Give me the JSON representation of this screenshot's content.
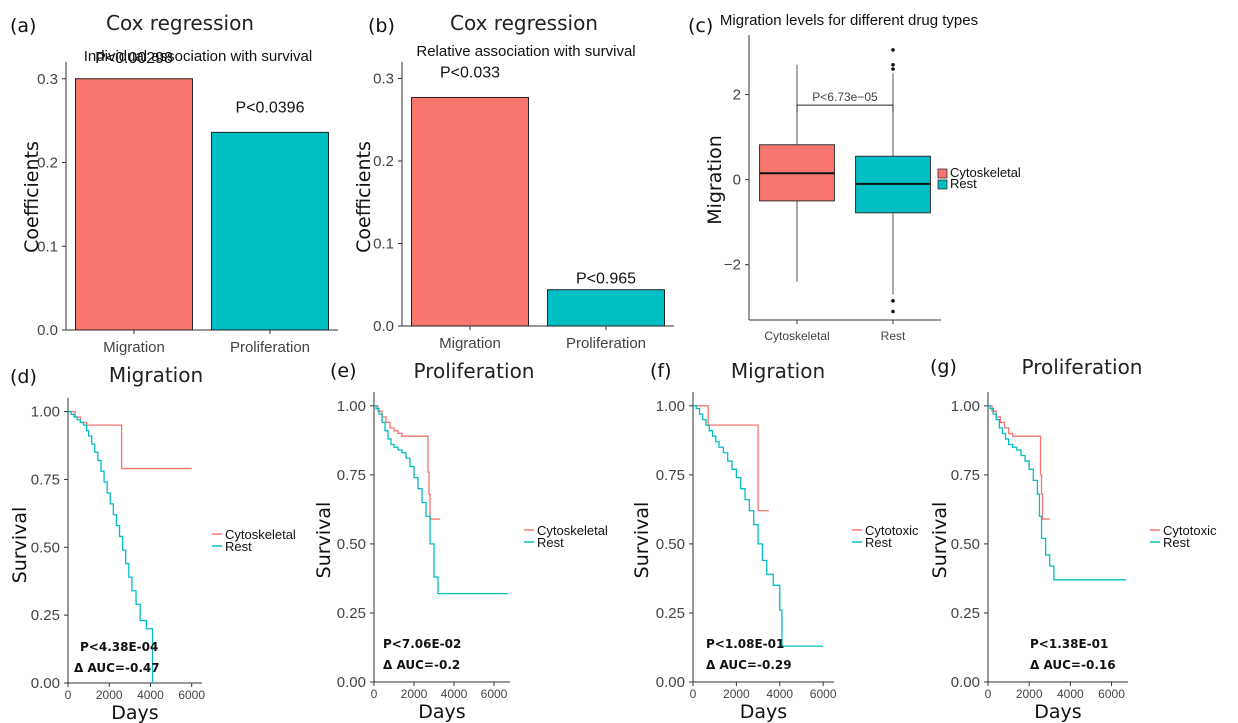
{
  "chart_data": [
    {
      "panel": "(a)",
      "type": "bar",
      "title": "Cox regression",
      "subtitle": "Individual association with survival",
      "ylabel": "Coefficients",
      "xlabel": "",
      "ylim": [
        0,
        0.32
      ],
      "yticks": [
        0.0,
        0.1,
        0.2,
        0.3
      ],
      "ytick_labels": [
        "0.0",
        "0.1",
        "0.2",
        "0.3"
      ],
      "categories": [
        "Migration",
        "Proliferation"
      ],
      "values": [
        0.3,
        0.236
      ],
      "value_labels": [
        "P<0.00298",
        "P<0.0396"
      ],
      "colors": [
        "#F8766D",
        "#00BFC4"
      ],
      "grid": false
    },
    {
      "panel": "(b)",
      "type": "bar",
      "title": "Cox regression",
      "subtitle": "Relative association with survival",
      "ylabel": "Coefficients",
      "xlabel": "",
      "ylim": [
        0,
        0.32
      ],
      "yticks": [
        0.0,
        0.1,
        0.2,
        0.3
      ],
      "ytick_labels": [
        "0.0",
        "0.1",
        "0.2",
        "0.3"
      ],
      "categories": [
        "Migration",
        "Proliferation"
      ],
      "values": [
        0.277,
        0.044
      ],
      "value_labels": [
        "P<0.033",
        "P<0.965"
      ],
      "colors": [
        "#F8766D",
        "#00BFC4"
      ],
      "grid": false
    },
    {
      "panel": "(c)",
      "type": "box",
      "title": "Migration levels for different drug types",
      "ylabel": "Migration",
      "xlabel": "",
      "ylim": [
        -3.3,
        3.4
      ],
      "yticks": [
        -2,
        0,
        2
      ],
      "ytick_labels": [
        "−2",
        "0",
        "2"
      ],
      "categories": [
        "Cytoskeletal",
        "Rest"
      ],
      "boxes": [
        {
          "name": "Cytoskeletal",
          "q1": -0.5,
          "median": 0.15,
          "q3": 0.82,
          "whisker_low": -2.4,
          "whisker_high": 2.7,
          "outliers": [],
          "color": "#F8766D"
        },
        {
          "name": "Rest",
          "q1": -0.78,
          "median": -0.1,
          "q3": 0.55,
          "whisker_low": -2.7,
          "whisker_high": 2.5,
          "outliers": [
            3.05,
            2.7,
            2.6,
            -2.85,
            -3.1
          ],
          "color": "#00BFC4"
        }
      ],
      "annotation": "P<6.73e−05",
      "legend": [
        "Cytoskeletal",
        "Rest"
      ],
      "legend_position": "right"
    },
    {
      "panel": "(d)",
      "type": "line",
      "title": "Migration",
      "xlabel": "Days",
      "ylabel": "Survival",
      "xlim": [
        0,
        6500
      ],
      "ylim": [
        0,
        1.05
      ],
      "xticks": [
        0,
        2000,
        4000,
        6000
      ],
      "xtick_labels": [
        "0",
        "2000",
        "4000",
        "6000"
      ],
      "yticks": [
        0,
        0.25,
        0.5,
        0.75,
        1.0
      ],
      "ytick_labels": [
        "0.00",
        "0.25",
        "0.50",
        "0.75",
        "1.00"
      ],
      "legend": [
        "Cytoskeletal",
        "Rest"
      ],
      "legend_position": "right",
      "p_label": "P<4.38E-04",
      "auc_label": "Δ AUC=-0.47",
      "series": [
        {
          "name": "Cytoskeletal",
          "color": "#F8766D",
          "x": [
            0,
            150,
            350,
            600,
            900,
            2600,
            2600,
            6000
          ],
          "y": [
            1.0,
            1.0,
            0.98,
            0.96,
            0.95,
            0.95,
            0.79,
            0.79
          ]
        },
        {
          "name": "Rest",
          "color": "#00BFC4",
          "x": [
            0,
            150,
            300,
            450,
            600,
            750,
            900,
            1000,
            1150,
            1300,
            1450,
            1600,
            1750,
            1900,
            2050,
            2200,
            2350,
            2500,
            2650,
            2800,
            2950,
            3100,
            3300,
            3500,
            3800,
            4100,
            4100
          ],
          "y": [
            1.0,
            0.99,
            0.98,
            0.97,
            0.96,
            0.95,
            0.93,
            0.91,
            0.88,
            0.85,
            0.82,
            0.78,
            0.74,
            0.7,
            0.66,
            0.62,
            0.58,
            0.54,
            0.49,
            0.44,
            0.39,
            0.34,
            0.29,
            0.23,
            0.2,
            0.15,
            0.0
          ]
        }
      ]
    },
    {
      "panel": "(e)",
      "type": "line",
      "title": "Proliferation",
      "xlabel": "Days",
      "ylabel": "Survival",
      "xlim": [
        0,
        6800
      ],
      "ylim": [
        0,
        1.05
      ],
      "xticks": [
        0,
        2000,
        4000,
        6000
      ],
      "xtick_labels": [
        "0",
        "2000",
        "4000",
        "6000"
      ],
      "yticks": [
        0,
        0.25,
        0.5,
        0.75,
        1.0
      ],
      "ytick_labels": [
        "0.00",
        "0.25",
        "0.50",
        "0.75",
        "1.00"
      ],
      "legend": [
        "Cytoskeletal",
        "Rest"
      ],
      "legend_position": "right",
      "p_label": "P<7.06E-02",
      "auc_label": "Δ AUC=-0.2",
      "series": [
        {
          "name": "Cytoskeletal",
          "color": "#F8766D",
          "x": [
            0,
            200,
            400,
            600,
            800,
            1000,
            1200,
            1400,
            2650,
            2700,
            2750,
            2800,
            3300
          ],
          "y": [
            1.0,
            0.98,
            0.96,
            0.94,
            0.92,
            0.91,
            0.9,
            0.89,
            0.89,
            0.76,
            0.68,
            0.59,
            0.59
          ]
        },
        {
          "name": "Rest",
          "color": "#00BFC4",
          "x": [
            0,
            100,
            250,
            400,
            550,
            700,
            850,
            1000,
            1200,
            1400,
            1600,
            1800,
            2000,
            2200,
            2400,
            2600,
            2800,
            3000,
            3200,
            6700
          ],
          "y": [
            1.0,
            0.99,
            0.97,
            0.94,
            0.91,
            0.88,
            0.86,
            0.85,
            0.84,
            0.83,
            0.81,
            0.78,
            0.74,
            0.7,
            0.65,
            0.6,
            0.5,
            0.38,
            0.32,
            0.32
          ]
        }
      ]
    },
    {
      "panel": "(f)",
      "type": "line",
      "title": "Migration",
      "xlabel": "Days",
      "ylabel": "Survival",
      "xlim": [
        0,
        6500
      ],
      "ylim": [
        0,
        1.05
      ],
      "xticks": [
        0,
        2000,
        4000,
        6000
      ],
      "xtick_labels": [
        "0",
        "2000",
        "4000",
        "6000"
      ],
      "yticks": [
        0,
        0.25,
        0.5,
        0.75,
        1.0
      ],
      "ytick_labels": [
        "0.00",
        "0.25",
        "0.50",
        "0.75",
        "1.00"
      ],
      "legend": [
        "Cytotoxic",
        "Rest"
      ],
      "legend_position": "right",
      "p_label": "P<1.08E-01",
      "auc_label": "Δ AUC=-0.29",
      "series": [
        {
          "name": "Cytotoxic",
          "color": "#F8766D",
          "x": [
            0,
            700,
            700,
            3000,
            3000,
            3500
          ],
          "y": [
            1.0,
            1.0,
            0.93,
            0.93,
            0.62,
            0.62
          ]
        },
        {
          "name": "Rest",
          "color": "#00BFC4",
          "x": [
            0,
            150,
            300,
            450,
            600,
            750,
            900,
            1050,
            1200,
            1400,
            1600,
            1800,
            2000,
            2200,
            2400,
            2600,
            2800,
            3000,
            3200,
            3400,
            3700,
            4000,
            4100,
            6000
          ],
          "y": [
            1.0,
            0.99,
            0.97,
            0.95,
            0.93,
            0.91,
            0.89,
            0.87,
            0.85,
            0.83,
            0.8,
            0.77,
            0.74,
            0.7,
            0.66,
            0.62,
            0.57,
            0.5,
            0.44,
            0.39,
            0.35,
            0.26,
            0.13,
            0.13
          ]
        }
      ]
    },
    {
      "panel": "(g)",
      "type": "line",
      "title": "Proliferation",
      "xlabel": "Days",
      "ylabel": "Survival",
      "xlim": [
        0,
        6800
      ],
      "ylim": [
        0,
        1.05
      ],
      "xticks": [
        0,
        2000,
        4000,
        6000
      ],
      "xtick_labels": [
        "0",
        "2000",
        "4000",
        "6000"
      ],
      "yticks": [
        0,
        0.25,
        0.5,
        0.75,
        1.0
      ],
      "ytick_labels": [
        "0.00",
        "0.25",
        "0.50",
        "0.75",
        "1.00"
      ],
      "legend": [
        "Cytotoxic",
        "Rest"
      ],
      "legend_position": "right",
      "p_label": "P<1.38E-01",
      "auc_label": "Δ AUC=-0.16",
      "series": [
        {
          "name": "Cytotoxic",
          "color": "#F8766D",
          "x": [
            0,
            200,
            400,
            600,
            800,
            1000,
            1200,
            2500,
            2550,
            2600,
            2650,
            3000
          ],
          "y": [
            1.0,
            0.98,
            0.96,
            0.94,
            0.92,
            0.9,
            0.89,
            0.89,
            0.75,
            0.68,
            0.59,
            0.59
          ]
        },
        {
          "name": "Rest",
          "color": "#00BFC4",
          "x": [
            0,
            100,
            250,
            400,
            550,
            700,
            850,
            1000,
            1200,
            1400,
            1600,
            1800,
            2000,
            2200,
            2400,
            2500,
            2600,
            2800,
            3000,
            3200,
            6700
          ],
          "y": [
            1.0,
            0.99,
            0.97,
            0.95,
            0.92,
            0.9,
            0.88,
            0.86,
            0.85,
            0.84,
            0.82,
            0.8,
            0.77,
            0.73,
            0.68,
            0.6,
            0.52,
            0.46,
            0.42,
            0.37,
            0.37
          ]
        }
      ]
    }
  ]
}
